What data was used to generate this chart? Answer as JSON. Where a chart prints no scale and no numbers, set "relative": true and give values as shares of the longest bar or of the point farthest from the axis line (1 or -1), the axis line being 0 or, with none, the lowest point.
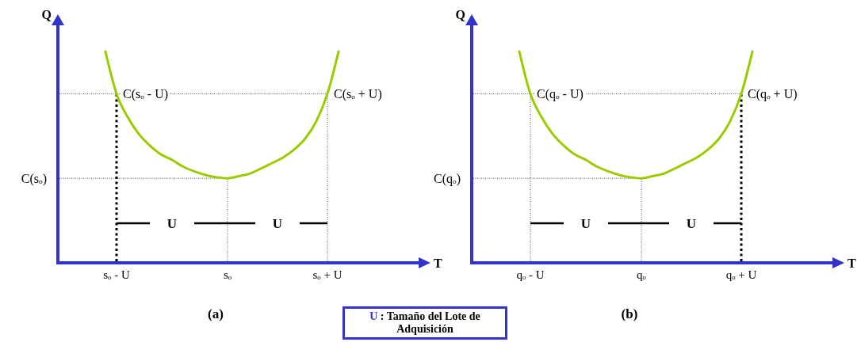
{
  "chart_data": [
    {
      "type": "line",
      "title": "(a)",
      "xlabel": "T",
      "ylabel": "Q",
      "relative": true,
      "categories": [
        null,
        "sₒ - U",
        null,
        null,
        null,
        null,
        null,
        null,
        null,
        null,
        null,
        "sₒ",
        null,
        null,
        null,
        null,
        null,
        null,
        null,
        null,
        "sₒ + U",
        null,
        null,
        null,
        null,
        null,
        null,
        null,
        null,
        null
      ],
      "series": [
        {
          "color": "#99cc00",
          "values": [
            1,
            0.8,
            0.69,
            0.61,
            0.555,
            0.513,
            0.487,
            0.455,
            0.433,
            0.416,
            0.405,
            0.4,
            0.41,
            0.422,
            0.446,
            0.472,
            0.498,
            0.536,
            0.588,
            0.67,
            0.8,
            1,
            null,
            null,
            null,
            null,
            null,
            null,
            null,
            null
          ]
        }
      ],
      "ref_lines": [
        {
          "axis": "y",
          "value": 0.4,
          "label": "C(sₒ)",
          "line_style": "dotted"
        },
        {
          "axis": "y",
          "value": 0.8,
          "line_style": "dotted"
        },
        {
          "axis": "x",
          "value": "sₒ - U",
          "line_style": "dashed"
        },
        {
          "axis": "x",
          "value": "sₒ",
          "line_style": "dotted"
        },
        {
          "axis": "x",
          "value": "sₒ + U",
          "line_style": "dotted"
        }
      ],
      "annotations": [
        {
          "text": "C(sₒ - U)",
          "x": "sₒ - U",
          "y": 0.8
        },
        {
          "text": "C(sₒ + U)",
          "x": "sₒ + U",
          "y": 0.8
        },
        "U",
        "U"
      ]
    },
    {
      "type": "line",
      "title": "(b)",
      "xlabel": "T",
      "ylabel": "Q",
      "relative": true,
      "categories": [
        null,
        "qₒ - U",
        null,
        null,
        null,
        null,
        null,
        null,
        null,
        null,
        null,
        "qₒ",
        null,
        null,
        null,
        null,
        null,
        null,
        null,
        null,
        "qₒ + U",
        null,
        null,
        null,
        null,
        null,
        null,
        null,
        null,
        null
      ],
      "series": [
        {
          "color": "#99cc00",
          "values": [
            1,
            0.8,
            0.69,
            0.61,
            0.555,
            0.513,
            0.487,
            0.455,
            0.433,
            0.416,
            0.405,
            0.4,
            0.41,
            0.422,
            0.446,
            0.472,
            0.498,
            0.536,
            0.588,
            0.67,
            0.8,
            1,
            null,
            null,
            null,
            null,
            null,
            null,
            null,
            null
          ]
        }
      ],
      "ref_lines": [
        {
          "axis": "y",
          "value": 0.4,
          "label": "C(qₒ)",
          "line_style": "dotted"
        },
        {
          "axis": "y",
          "value": 0.8,
          "line_style": "dotted"
        },
        {
          "axis": "x",
          "value": "qₒ - U",
          "line_style": "dotted"
        },
        {
          "axis": "x",
          "value": "qₒ",
          "line_style": "dotted"
        },
        {
          "axis": "x",
          "value": "qₒ + U",
          "line_style": "dashed"
        }
      ],
      "annotations": [
        {
          "text": "C(qₒ - U)",
          "x": "qₒ - U",
          "y": 0.8
        },
        {
          "text": "C(qₒ + U)",
          "x": "qₒ + U",
          "y": 0.8
        },
        "U",
        "U"
      ]
    },
    {
      "type": "other",
      "annotations": [
        "U",
        ": Tamaño del Lote de Adquisición"
      ]
    }
  ]
}
